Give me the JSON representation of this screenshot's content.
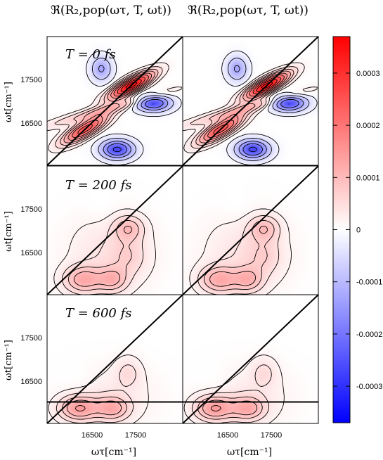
{
  "chart_data": {
    "type": "heatmap",
    "column_titles": [
      "ℜ(R₂,pop(ωτ, T, ωt))",
      "ℜ(R₂,pop(ωτ, T, ωt))"
    ],
    "row_labels": [
      "T = 0 fs",
      "T = 200 fs",
      "T = 600 fs"
    ],
    "xlabel": "ωτ[cm⁻¹]",
    "ylabel": "ωt[cm⁻¹]",
    "xticks": [
      "16500",
      "17500"
    ],
    "yticks": [
      "17500",
      "16500"
    ],
    "xlim": [
      15700,
      18700
    ],
    "ylim": [
      15700,
      18700
    ],
    "colorbar": {
      "ticks": [
        "0.0003",
        "0.0002",
        "0.0001",
        "0",
        "-0.0001",
        "-0.0002",
        "-0.0003"
      ],
      "range": [
        -0.00037,
        0.00037
      ],
      "colors": {
        "negative": "#0000ff",
        "zero": "#ffffff",
        "positive": "#ff0000"
      }
    },
    "panels": [
      {
        "row": 0,
        "col": 0,
        "peaks": [
          {
            "x": 17560,
            "y": 17560,
            "sx": 330,
            "sy": 210,
            "a": 0.00036,
            "r": 0.8
          },
          {
            "x": 16540,
            "y": 16540,
            "sx": 340,
            "sy": 230,
            "a": 0.00026,
            "r": 0.8
          },
          {
            "x": 17000,
            "y": 17000,
            "sx": 900,
            "sy": 280,
            "a": 9e-05,
            "r": 0.95
          },
          {
            "x": 17250,
            "y": 16070,
            "sx": 240,
            "sy": 150,
            "a": -0.00027,
            "r": 0
          },
          {
            "x": 18050,
            "y": 17150,
            "sx": 260,
            "sy": 130,
            "a": -0.00026,
            "r": 0
          },
          {
            "x": 16900,
            "y": 17950,
            "sx": 160,
            "sy": 200,
            "a": -0.00013,
            "r": 0
          }
        ]
      },
      {
        "row": 0,
        "col": 1,
        "peaks": [
          {
            "x": 17560,
            "y": 17560,
            "sx": 330,
            "sy": 210,
            "a": 0.00036,
            "r": 0.8
          },
          {
            "x": 16540,
            "y": 16540,
            "sx": 340,
            "sy": 230,
            "a": 0.00026,
            "r": 0.8
          },
          {
            "x": 17000,
            "y": 17000,
            "sx": 900,
            "sy": 280,
            "a": 9e-05,
            "r": 0.95
          },
          {
            "x": 17250,
            "y": 16070,
            "sx": 240,
            "sy": 150,
            "a": -0.00027,
            "r": 0
          },
          {
            "x": 18050,
            "y": 17150,
            "sx": 260,
            "sy": 130,
            "a": -0.00026,
            "r": 0
          },
          {
            "x": 16900,
            "y": 17950,
            "sx": 160,
            "sy": 200,
            "a": -0.00013,
            "r": 0
          }
        ]
      },
      {
        "row": 1,
        "col": 0,
        "peaks": [
          {
            "x": 16500,
            "y": 16050,
            "sx": 300,
            "sy": 220,
            "a": 0.00011,
            "r": 0
          },
          {
            "x": 17150,
            "y": 16050,
            "sx": 220,
            "sy": 200,
            "a": 8.5e-05,
            "r": 0
          },
          {
            "x": 17500,
            "y": 17250,
            "sx": 230,
            "sy": 200,
            "a": 8e-05,
            "r": 0
          },
          {
            "x": 17100,
            "y": 16650,
            "sx": 650,
            "sy": 650,
            "a": 4e-05,
            "r": 0
          },
          {
            "x": 17500,
            "y": 16600,
            "sx": 260,
            "sy": 300,
            "a": 4e-05,
            "r": 0
          },
          {
            "x": 16900,
            "y": 17700,
            "sx": 250,
            "sy": 300,
            "a": -8e-06,
            "r": 0
          }
        ]
      },
      {
        "row": 1,
        "col": 1,
        "peaks": [
          {
            "x": 16500,
            "y": 16050,
            "sx": 300,
            "sy": 220,
            "a": 0.00011,
            "r": 0
          },
          {
            "x": 17150,
            "y": 16050,
            "sx": 220,
            "sy": 200,
            "a": 8.5e-05,
            "r": 0
          },
          {
            "x": 17500,
            "y": 17250,
            "sx": 230,
            "sy": 200,
            "a": 8e-05,
            "r": 0
          },
          {
            "x": 17100,
            "y": 16650,
            "sx": 650,
            "sy": 650,
            "a": 4e-05,
            "r": 0
          },
          {
            "x": 17500,
            "y": 16600,
            "sx": 260,
            "sy": 300,
            "a": 4e-05,
            "r": 0
          },
          {
            "x": 16900,
            "y": 17700,
            "sx": 250,
            "sy": 300,
            "a": -8e-06,
            "r": 0
          }
        ]
      },
      {
        "row": 2,
        "col": 0,
        "peaks": [
          {
            "x": 16400,
            "y": 16050,
            "sx": 300,
            "sy": 200,
            "a": 0.00013,
            "r": 0
          },
          {
            "x": 17150,
            "y": 16050,
            "sx": 250,
            "sy": 190,
            "a": 0.0001,
            "r": 0
          },
          {
            "x": 17500,
            "y": 16900,
            "sx": 200,
            "sy": 250,
            "a": 4e-05,
            "r": 0
          },
          {
            "x": 17100,
            "y": 16300,
            "sx": 700,
            "sy": 500,
            "a": 3e-05,
            "r": 0
          },
          {
            "x": 16400,
            "y": 16700,
            "sx": 280,
            "sy": 250,
            "a": -1e-05,
            "r": 0
          }
        ]
      },
      {
        "row": 2,
        "col": 1,
        "peaks": [
          {
            "x": 16400,
            "y": 16050,
            "sx": 300,
            "sy": 200,
            "a": 0.00013,
            "r": 0
          },
          {
            "x": 17150,
            "y": 16050,
            "sx": 250,
            "sy": 190,
            "a": 0.0001,
            "r": 0
          },
          {
            "x": 17500,
            "y": 16900,
            "sx": 200,
            "sy": 250,
            "a": 4e-05,
            "r": 0
          },
          {
            "x": 17100,
            "y": 16300,
            "sx": 700,
            "sy": 500,
            "a": 3e-05,
            "r": 0
          },
          {
            "x": 16400,
            "y": 16700,
            "sx": 280,
            "sy": 250,
            "a": -1e-05,
            "r": 0
          }
        ]
      }
    ],
    "contour_levels": [
      -0.00025,
      -0.00018,
      -0.00012,
      -6e-05,
      -1.5e-05,
      1.5e-05,
      4e-05,
      7e-05,
      0.0001,
      0.00014,
      0.00018,
      0.00023,
      0.00028,
      0.00033
    ],
    "diagonal_line": true,
    "horizontal_line_last_row": 16200
  }
}
